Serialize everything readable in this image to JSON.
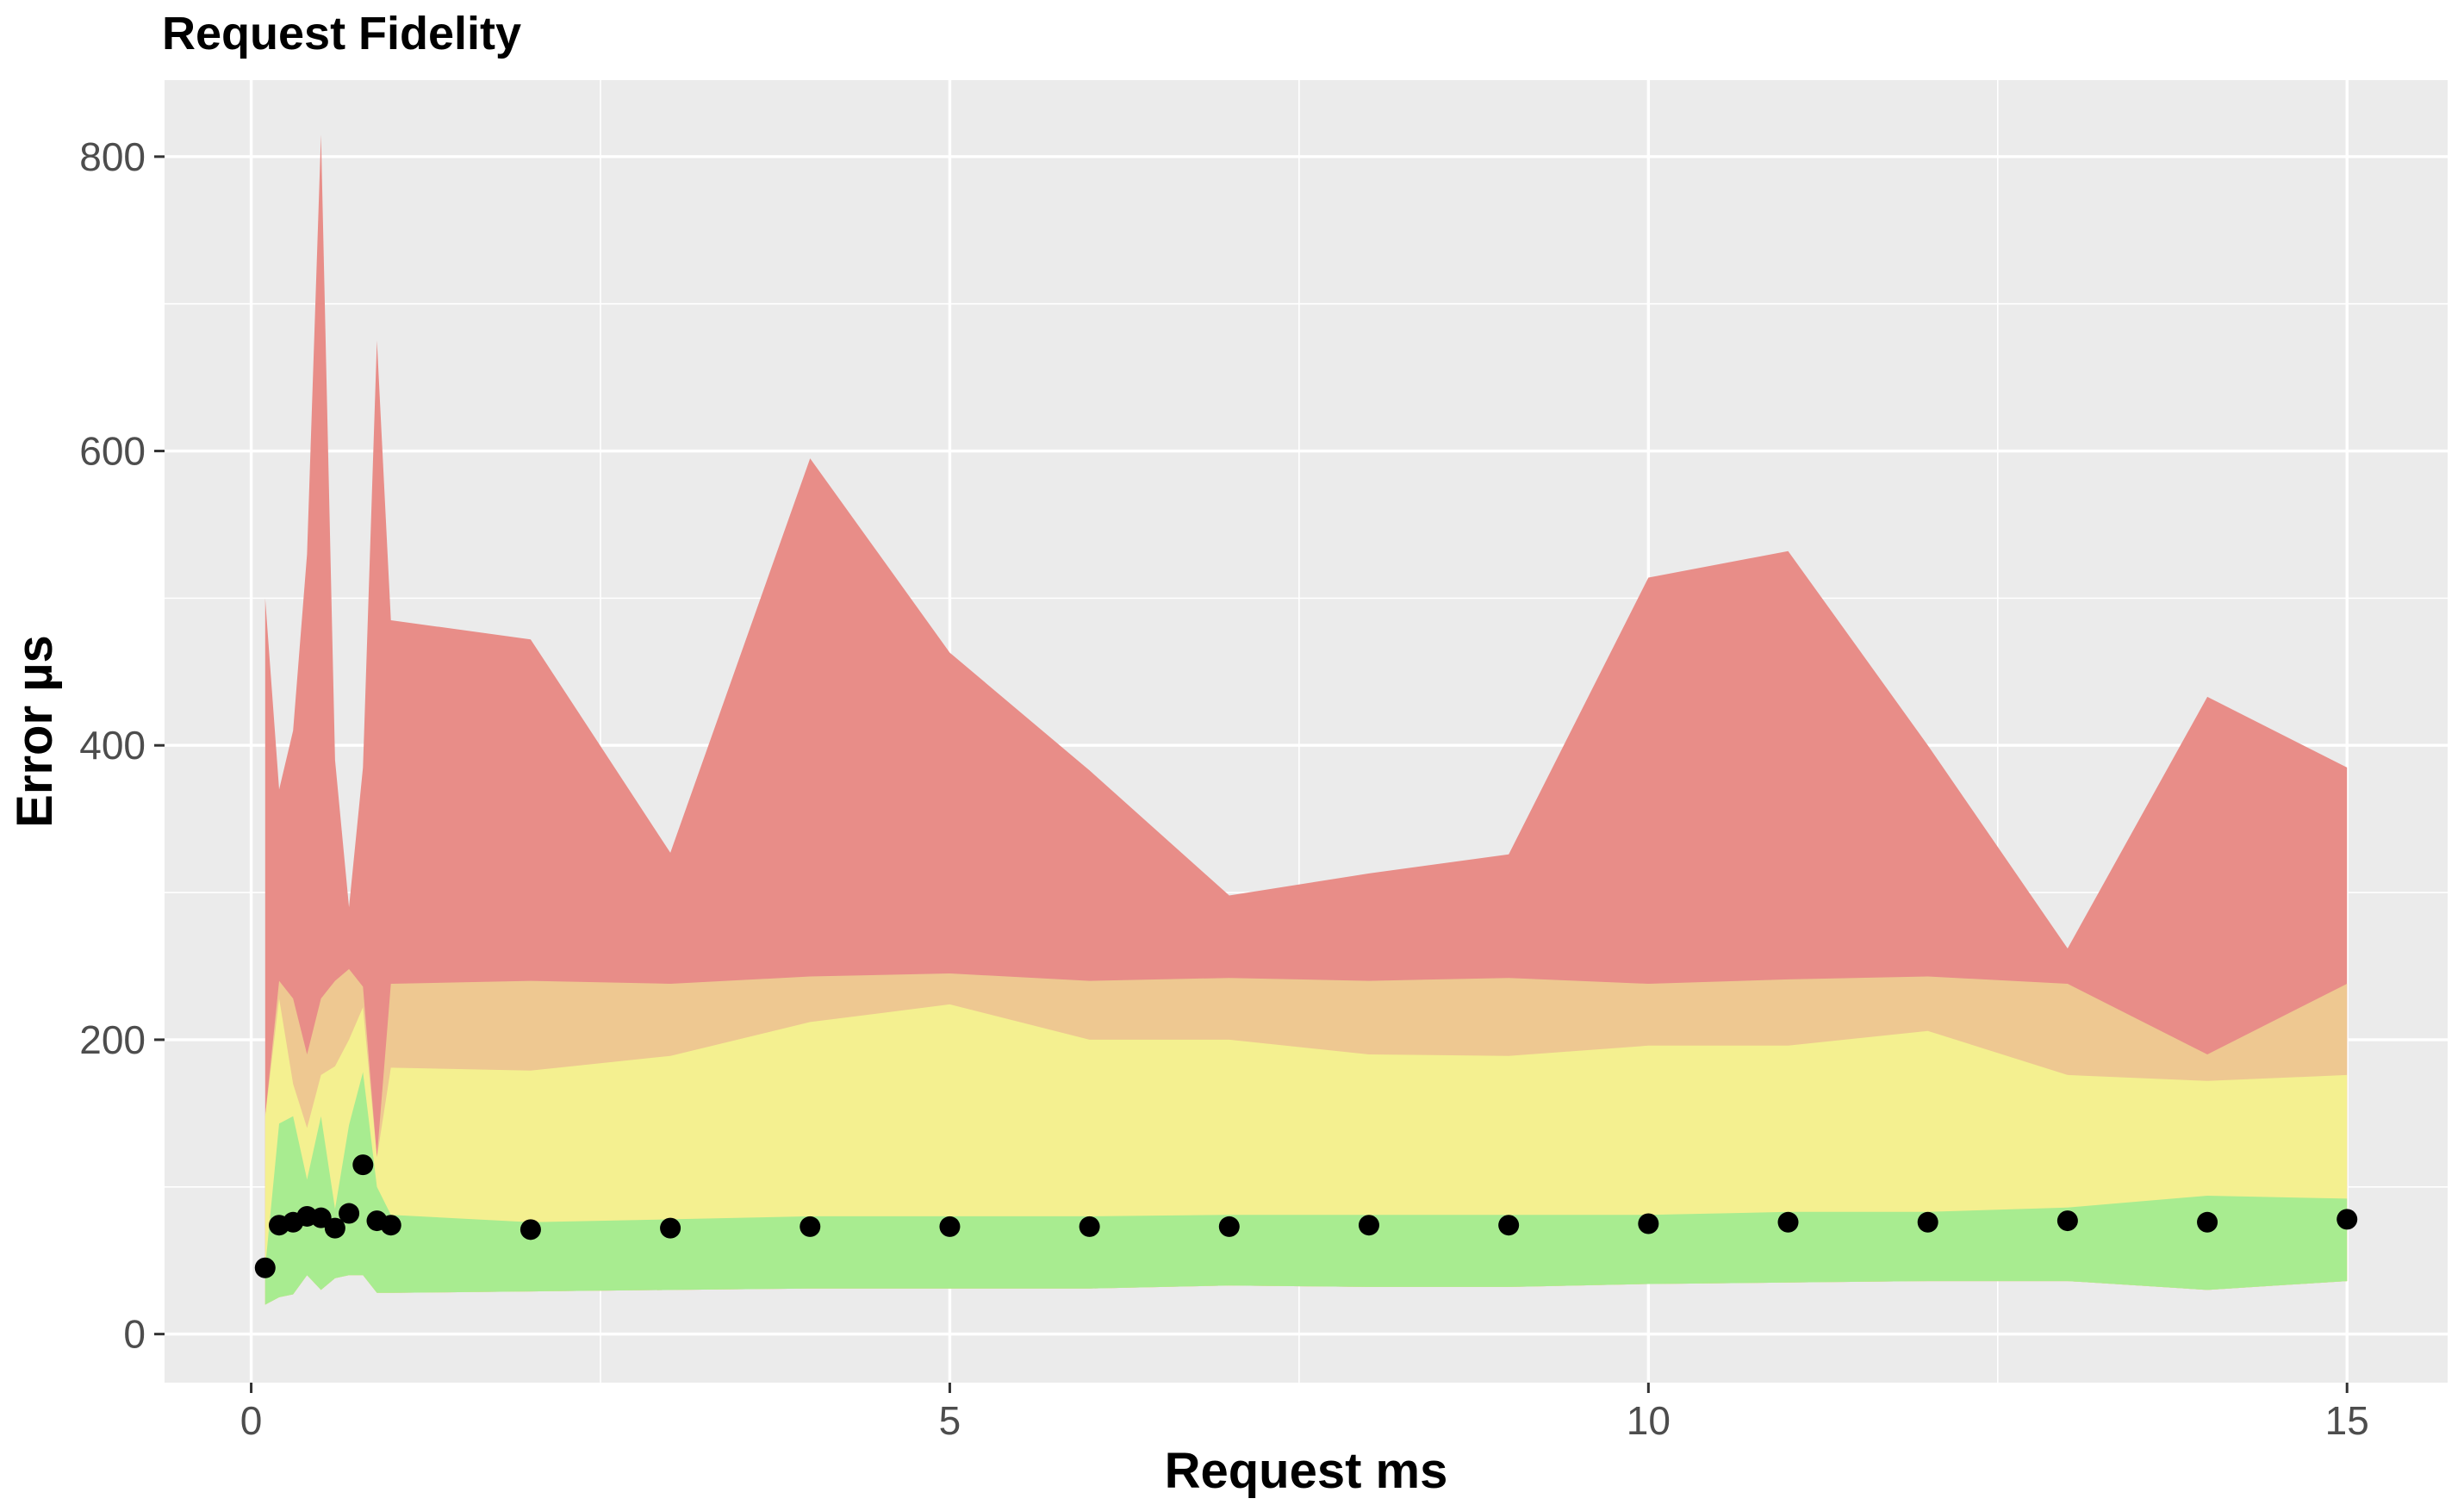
{
  "chart_data": {
    "type": "area",
    "title": "Request Fidelity",
    "xlabel": "Request ms",
    "ylabel": "Error µs",
    "xlim": [
      -0.62,
      15.72
    ],
    "ylim": [
      -33,
      852
    ],
    "x_ticks": [
      0,
      5,
      10,
      15
    ],
    "y_ticks": [
      0,
      200,
      400,
      600,
      800
    ],
    "x_tick_labels": [
      "0",
      "5",
      "10",
      "15"
    ],
    "y_tick_labels": [
      "0",
      "200",
      "400",
      "600",
      "800"
    ],
    "grid": true,
    "legend": "none",
    "colors": {
      "panel": "#ebebeb",
      "grid": "#ffffff",
      "red_band": "#e88d88",
      "orange_band": "#eec891",
      "yellow_band": "#f4f090",
      "green_band": "#a8ec90",
      "points": "#000000",
      "tick_text": "#4d4d4d"
    },
    "x": [
      0.1,
      0.2,
      0.3,
      0.4,
      0.5,
      0.6,
      0.7,
      0.8,
      0.9,
      1,
      2,
      3,
      4,
      5,
      6,
      7,
      8,
      9,
      10,
      11,
      12,
      13,
      14,
      15
    ],
    "bands": [
      {
        "lower": [
          20,
          25,
          27,
          40,
          30,
          38,
          40,
          40,
          28,
          28,
          29,
          30,
          31,
          31,
          31,
          33,
          32,
          32,
          34,
          35,
          36,
          36,
          30,
          36
        ],
        "upper": [
          500,
          370,
          410,
          530,
          815,
          390,
          290,
          385,
          675,
          485,
          472,
          327,
          595,
          463,
          383,
          298,
          313,
          326,
          514,
          532,
          400,
          262,
          433,
          385
        ]
      },
      {
        "lower": [
          20,
          25,
          27,
          40,
          30,
          38,
          40,
          40,
          28,
          28,
          29,
          30,
          31,
          31,
          31,
          33,
          32,
          32,
          34,
          35,
          36,
          36,
          30,
          36
        ],
        "upper": [
          148,
          240,
          228,
          190,
          228,
          240,
          248,
          236,
          120,
          238,
          240,
          238,
          243,
          245,
          240,
          242,
          240,
          242,
          238,
          241,
          243,
          238,
          190,
          238
        ]
      },
      {
        "lower": [
          20,
          25,
          27,
          40,
          30,
          38,
          40,
          40,
          28,
          28,
          29,
          30,
          31,
          31,
          31,
          33,
          32,
          32,
          34,
          35,
          36,
          36,
          30,
          36
        ],
        "upper": [
          148,
          228,
          170,
          140,
          176,
          182,
          200,
          222,
          120,
          181,
          179,
          189,
          212,
          224,
          200,
          200,
          190,
          189,
          196,
          196,
          206,
          176,
          172,
          176
        ]
      },
      {
        "lower": [
          20,
          25,
          27,
          40,
          30,
          38,
          40,
          40,
          28,
          28,
          29,
          30,
          31,
          31,
          31,
          33,
          32,
          32,
          34,
          35,
          36,
          36,
          30,
          36
        ],
        "upper": [
          45,
          143,
          148,
          105,
          148,
          85,
          142,
          178,
          100,
          81,
          76,
          78,
          80,
          80,
          80,
          81,
          81,
          81,
          81,
          83,
          83,
          86,
          94,
          92
        ]
      }
    ],
    "points": {
      "x": [
        0.1,
        0.2,
        0.3,
        0.4,
        0.5,
        0.6,
        0.7,
        0.8,
        0.9,
        1,
        2,
        3,
        4,
        5,
        6,
        7,
        8,
        9,
        10,
        11,
        12,
        13,
        14,
        15
      ],
      "y": [
        45,
        74,
        76,
        80,
        79,
        72,
        82,
        115,
        77,
        74,
        71,
        72,
        73,
        73,
        73,
        73,
        74,
        74,
        75,
        76,
        76,
        77,
        76,
        78
      ]
    }
  }
}
